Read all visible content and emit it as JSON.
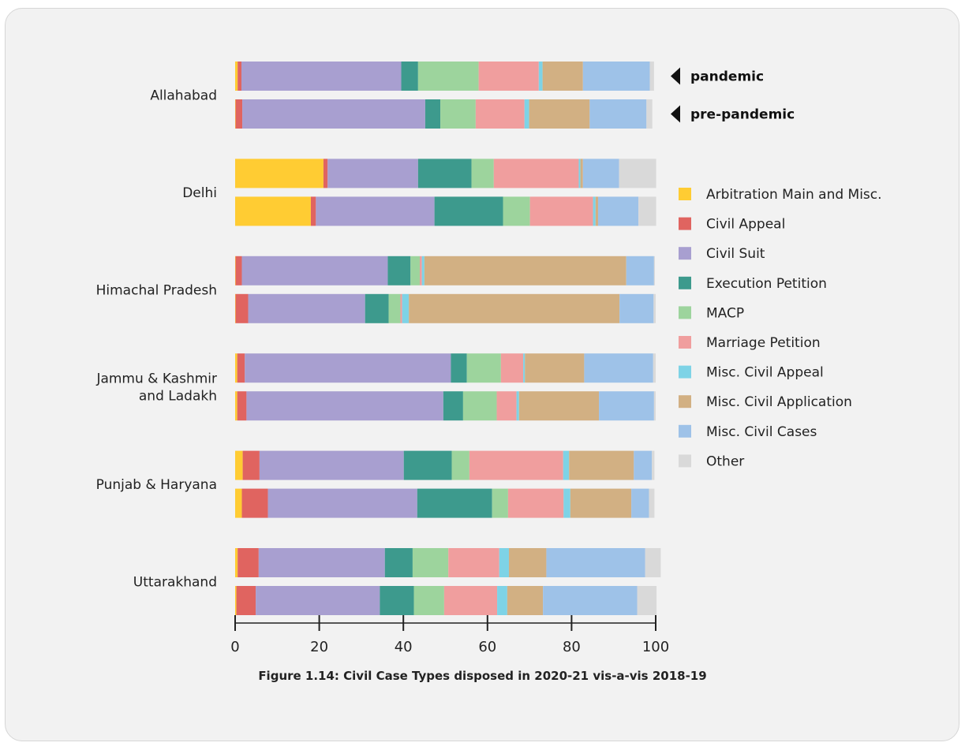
{
  "chart_data": {
    "type": "bar",
    "orientation": "horizontal",
    "stacked": true,
    "categories": [
      "Allahabad",
      "Delhi",
      "Himachal Pradesh",
      "Jammu & Kashmir\nand Ladakh",
      "Punjab & Haryana",
      "Uttarakhand"
    ],
    "period_labels": [
      "pandemic",
      "pre-pandemic"
    ],
    "xlim": [
      0,
      100
    ],
    "xticks": [
      0,
      20,
      40,
      60,
      80,
      100
    ],
    "legend_position": "right",
    "series": [
      {
        "name": "Arbitration Main and Misc.",
        "color": "#ffcc33",
        "values": [
          [
            0.6,
            0.1
          ],
          [
            21.0,
            18.0
          ],
          [
            0.1,
            0.1
          ],
          [
            0.5,
            0.5
          ],
          [
            1.8,
            1.6
          ],
          [
            0.6,
            0.3
          ]
        ]
      },
      {
        "name": "Civil Appeal",
        "color": "#e06460",
        "values": [
          [
            0.9,
            1.6
          ],
          [
            1.0,
            1.2
          ],
          [
            1.5,
            3.0
          ],
          [
            1.8,
            2.2
          ],
          [
            4.0,
            6.2
          ],
          [
            5.0,
            4.6
          ]
        ]
      },
      {
        "name": "Civil Suit",
        "color": "#a89fd0",
        "values": [
          [
            38.0,
            43.5
          ],
          [
            21.5,
            28.2
          ],
          [
            34.7,
            27.8
          ],
          [
            49.0,
            46.8
          ],
          [
            34.3,
            35.5
          ],
          [
            30.0,
            29.5
          ]
        ]
      },
      {
        "name": "Execution Petition",
        "color": "#3d9a8d",
        "values": [
          [
            4.0,
            3.6
          ],
          [
            12.7,
            16.3
          ],
          [
            5.4,
            5.6
          ],
          [
            3.8,
            4.7
          ],
          [
            11.4,
            17.8
          ],
          [
            6.6,
            8.1
          ]
        ]
      },
      {
        "name": "MACP",
        "color": "#9dd49d",
        "values": [
          [
            14.4,
            8.4
          ],
          [
            5.3,
            6.4
          ],
          [
            2.2,
            2.8
          ],
          [
            8.1,
            8.0
          ],
          [
            4.2,
            3.8
          ],
          [
            8.5,
            7.2
          ]
        ]
      },
      {
        "name": "Marriage Petition",
        "color": "#f09e9e",
        "values": [
          [
            14.3,
            11.6
          ],
          [
            20.2,
            15.0
          ],
          [
            0.5,
            0.4
          ],
          [
            5.3,
            4.7
          ],
          [
            22.3,
            13.2
          ],
          [
            12.1,
            12.6
          ]
        ]
      },
      {
        "name": "Misc. Civil Appeal",
        "color": "#7ed3e6",
        "values": [
          [
            0.9,
            1.1
          ],
          [
            0.4,
            0.6
          ],
          [
            0.6,
            1.6
          ],
          [
            0.4,
            0.6
          ],
          [
            1.4,
            1.6
          ],
          [
            2.3,
            2.4
          ]
        ]
      },
      {
        "name": "Misc. Civil Application",
        "color": "#d2b083",
        "values": [
          [
            9.6,
            14.4
          ],
          [
            0.6,
            0.6
          ],
          [
            48.0,
            50.1
          ],
          [
            14.1,
            19.0
          ],
          [
            15.4,
            14.5
          ],
          [
            8.9,
            8.5
          ]
        ]
      },
      {
        "name": "Misc. Civil Cases",
        "color": "#9ec2e8",
        "values": [
          [
            15.9,
            13.5
          ],
          [
            8.6,
            9.6
          ],
          [
            6.6,
            8.1
          ],
          [
            16.4,
            13.1
          ],
          [
            4.3,
            4.2
          ],
          [
            23.5,
            22.4
          ]
        ]
      },
      {
        "name": "Other",
        "color": "#d9d9d9",
        "values": [
          [
            1.0,
            1.4
          ],
          [
            8.8,
            4.2
          ],
          [
            0.2,
            0.5
          ],
          [
            0.6,
            0.4
          ],
          [
            0.6,
            1.3
          ],
          [
            3.7,
            4.6
          ]
        ]
      }
    ]
  },
  "caption": "Figure 1.14: Civil Case Types disposed in 2020-21 vis-a-vis 2018-19"
}
